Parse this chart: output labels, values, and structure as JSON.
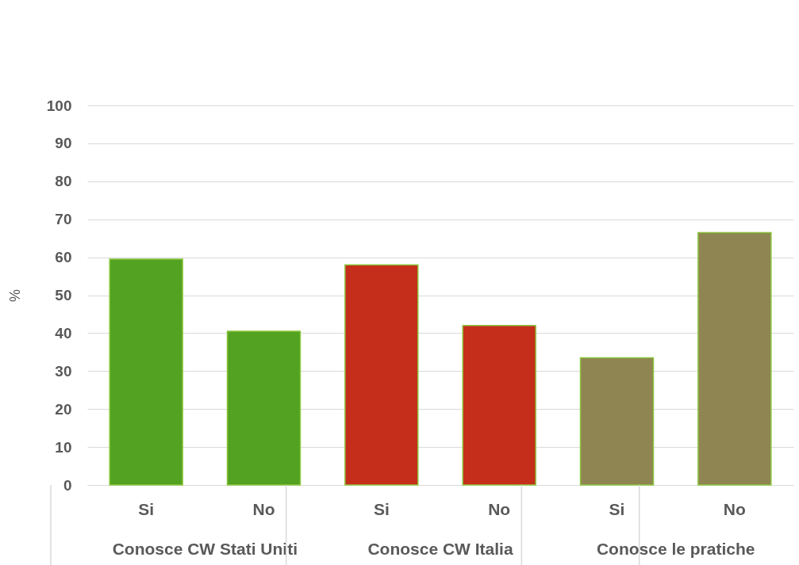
{
  "chart_data": {
    "type": "bar",
    "ylabel": "%",
    "categories": [
      "Si",
      "No",
      "Si",
      "No",
      "Si",
      "No"
    ],
    "values": [
      59.5,
      40.5,
      58,
      42,
      33.5,
      66.5
    ],
    "colors": [
      "#53a221",
      "#53a221",
      "#c42e1b",
      "#c42e1b",
      "#8f8552",
      "#8f8552"
    ],
    "annotations": [
      "Conosce CW Stati Uniti",
      "Conosce CW Italia",
      "Conosce le pratiche"
    ],
    "ylim": [
      0,
      100
    ],
    "yticks": [
      0,
      10,
      20,
      30,
      40,
      50,
      60,
      70,
      80,
      90,
      100
    ],
    "grid": "y"
  }
}
